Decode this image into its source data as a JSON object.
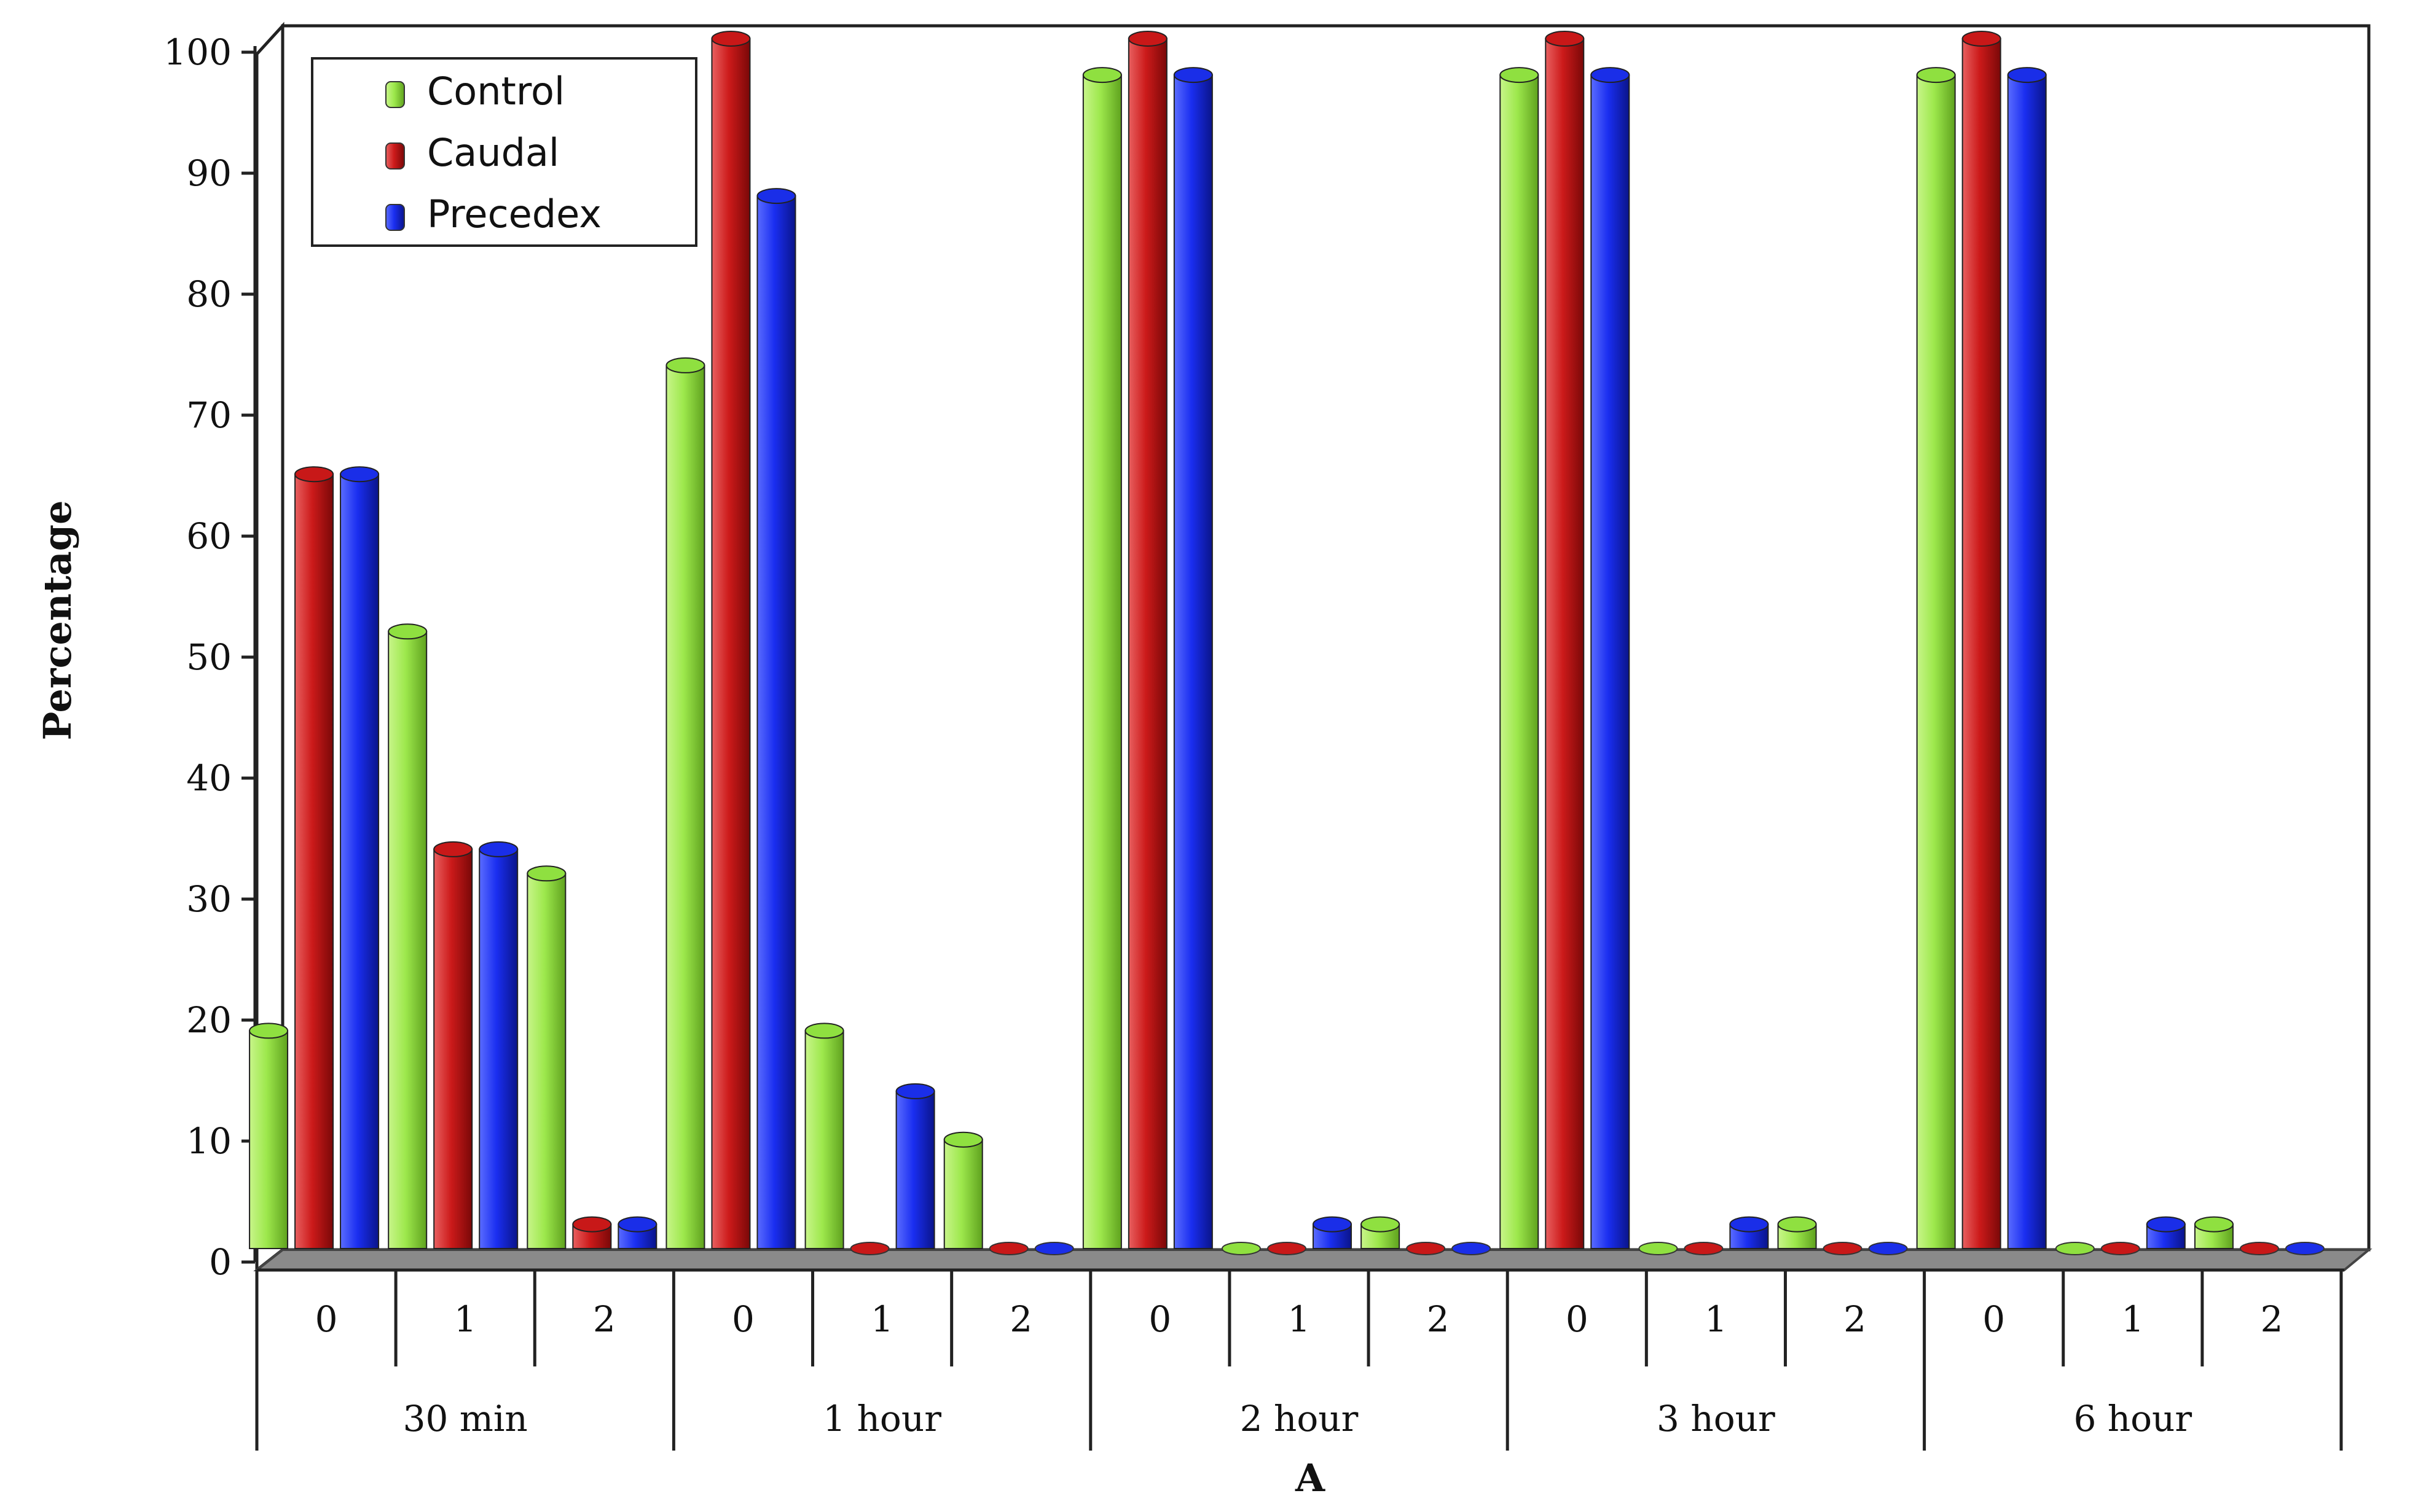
{
  "chart_data": {
    "type": "bar",
    "title": "",
    "xlabel": "A",
    "ylabel": "Percentage",
    "ylim": [
      0,
      100
    ],
    "yticks": [
      "0",
      "10",
      "20",
      "30",
      "40",
      "50",
      "60",
      "70",
      "80",
      "90",
      "100"
    ],
    "groups": [
      "30 min",
      "1 hour",
      "2 hour",
      "3 hour",
      "6 hour"
    ],
    "categories": [
      "0",
      "1",
      "2",
      "0",
      "1",
      "2",
      "0",
      "1",
      "2",
      "0",
      "1",
      "2",
      "0",
      "1",
      "2"
    ],
    "series": [
      {
        "name": "Control",
        "color": "#8fe040",
        "values": [
          18,
          51,
          31,
          73,
          18,
          9,
          97,
          0,
          2,
          97,
          0,
          2,
          97,
          0,
          2
        ]
      },
      {
        "name": "Caudal",
        "color": "#c81818",
        "values": [
          64,
          33,
          2,
          100,
          0,
          0,
          100,
          0,
          0,
          100,
          0,
          0,
          100,
          0,
          0
        ]
      },
      {
        "name": "Precedex",
        "color": "#1a2ee8",
        "values": [
          64,
          33,
          2,
          87,
          13,
          0,
          97,
          2,
          0,
          97,
          2,
          0,
          97,
          2,
          0
        ]
      }
    ],
    "legend_position": "top-left",
    "grid": false
  }
}
